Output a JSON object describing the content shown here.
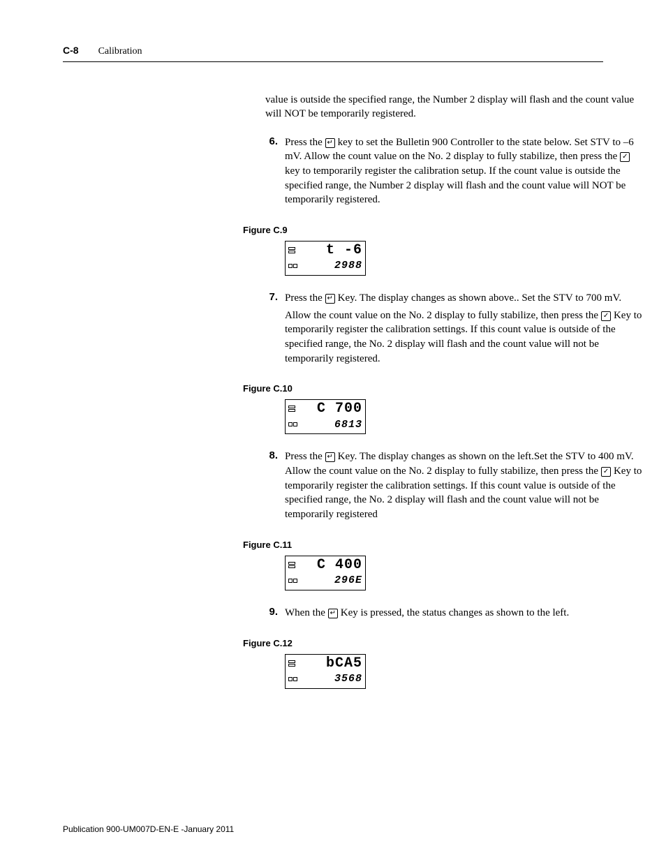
{
  "header": {
    "page_number": "C-8",
    "section_title": "Calibration"
  },
  "intro_para": "value is outside the specified range, the Number 2 display will flash and the count value will NOT be temporarily registered.",
  "steps": [
    {
      "num": "6.",
      "body_parts": [
        "Press the ",
        " key to set the Bulletin 900 Controller to the state below. Set STV to –6 mV. Allow the count value on the No. 2 display to fully stabilize, then press the ",
        " key to temporarily register the calibration setup. If the count value is outside the specified range, the Number 2 display will flash and the count value will NOT be temporarily registered."
      ],
      "icons": [
        "↵",
        "✓"
      ]
    },
    {
      "num": "7.",
      "body_parts_a": [
        "Press the ",
        " Key. The display changes as shown above.. Set the STV to 700 mV."
      ],
      "body_parts_b": [
        "Allow the count value on the No. 2 display to fully stabilize, then press the ",
        " Key to temporarily register the calibration settings. If this count value is outside of the specified range, the No. 2 display will flash and the count value will not be temporarily registered."
      ],
      "icons": [
        "↵",
        "✓"
      ]
    },
    {
      "num": "8.",
      "body_parts": [
        "Press the ",
        " Key. The display changes as shown on the left.Set the STV to 400 mV. Allow the count value on the No. 2 display to fully stabilize, then press the  ",
        "  Key to temporarily register the calibration settings. If this count value is outside of the specified range, the No. 2 display will flash and the count value will not be temporarily registered"
      ],
      "icons": [
        "↵",
        "✓"
      ]
    },
    {
      "num": "9.",
      "body_parts": [
        "When the ",
        "  Key is pressed, the status changes as shown to the left."
      ],
      "icons": [
        "↵"
      ]
    }
  ],
  "figures": [
    {
      "label": "Figure C.9",
      "top": "t   -6",
      "bot": "2988"
    },
    {
      "label": "Figure C.10",
      "top": "C 700",
      "bot": "6813"
    },
    {
      "label": "Figure C.11",
      "top": "C 400",
      "bot": "296E"
    },
    {
      "label": "Figure C.12",
      "top": "bCA5",
      "bot": "3568"
    }
  ],
  "footer": "Publication 900-UM007D-EN-E -January 2011",
  "colors": {
    "text": "#000000",
    "bg": "#ffffff",
    "rule": "#000000"
  },
  "typography": {
    "body_family": "Georgia",
    "label_family": "Arial",
    "body_size_pt": 11,
    "label_size_pt": 10
  }
}
